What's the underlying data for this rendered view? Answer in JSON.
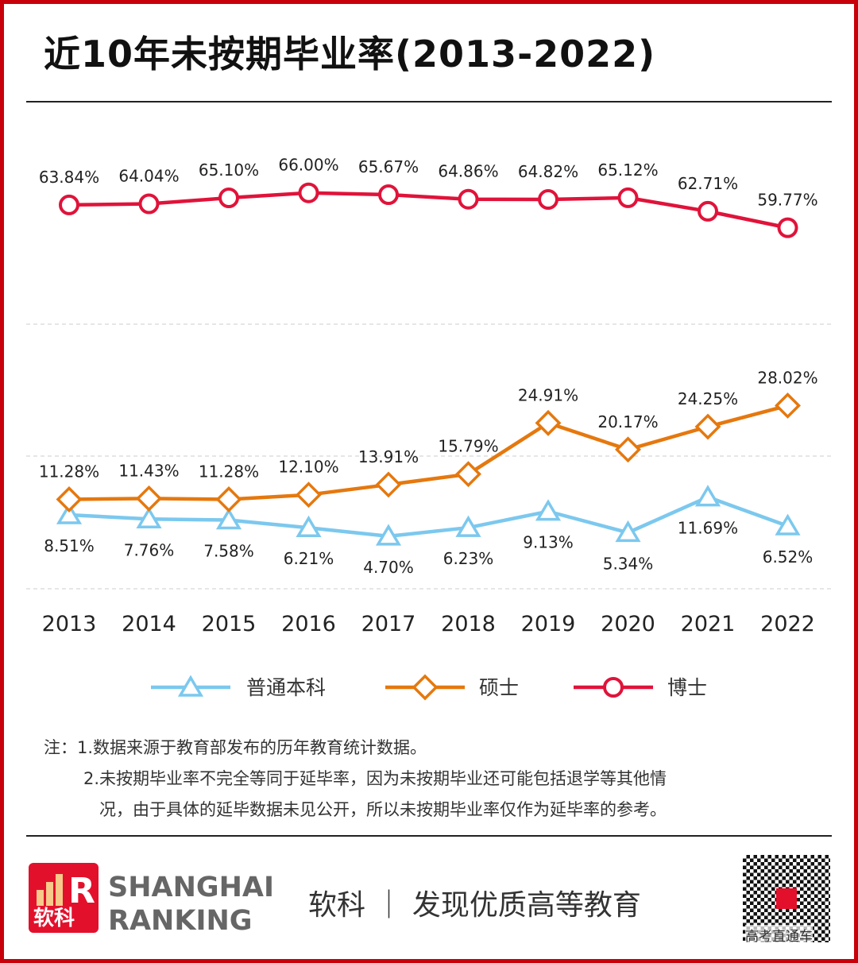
{
  "title": "近10年未按期毕业率(2013-2022)",
  "chart_data": {
    "type": "line",
    "title": "近10年未按期毕业率(2013-2022)",
    "categories": [
      "2013",
      "2014",
      "2015",
      "2016",
      "2017",
      "2018",
      "2019",
      "2020",
      "2021",
      "2022"
    ],
    "series": [
      {
        "name": "普通本科",
        "color": "#7cc8ee",
        "marker": "triangle",
        "values": [
          8.51,
          7.76,
          7.58,
          6.21,
          4.7,
          6.23,
          9.13,
          5.34,
          11.69,
          6.52
        ],
        "labels": [
          "8.51%",
          "7.76%",
          "7.58%",
          "6.21%",
          "4.70%",
          "6.23%",
          "9.13%",
          "5.34%",
          "11.69%",
          "6.52%"
        ]
      },
      {
        "name": "硕士",
        "color": "#e5780e",
        "marker": "diamond",
        "values": [
          11.28,
          11.43,
          11.28,
          12.1,
          13.91,
          15.79,
          24.91,
          20.17,
          24.25,
          28.02
        ],
        "labels": [
          "11.28%",
          "11.43%",
          "11.28%",
          "12.10%",
          "13.91%",
          "15.79%",
          "24.91%",
          "20.17%",
          "24.25%",
          "28.02%"
        ]
      },
      {
        "name": "博士",
        "color": "#e0133a",
        "marker": "circle",
        "values": [
          63.84,
          64.04,
          65.1,
          66.0,
          65.67,
          64.86,
          64.82,
          65.12,
          62.71,
          59.77
        ],
        "labels": [
          "63.84%",
          "64.04%",
          "65.10%",
          "66.00%",
          "65.67%",
          "64.86%",
          "64.82%",
          "65.12%",
          "62.71%",
          "59.77%"
        ]
      }
    ],
    "grid": "dashed horizontal",
    "legend": "bottom"
  },
  "notes": [
    "注：1.数据来源于教育部发布的历年教育统计数据。",
    "2.未按期毕业率不完全等同于延毕率，因为未按期毕业还可能包括退学等其他情",
    "况，由于具体的延毕数据未见公开，所以未按期毕业率仅作为延毕率的参考。"
  ],
  "footer": {
    "logo_text": "软科",
    "brand1": "SHANGHAI",
    "brand2": "RANKING",
    "slogan": "软科 ｜ 发现优质高等教育",
    "qr_caption": "高考直通车"
  }
}
